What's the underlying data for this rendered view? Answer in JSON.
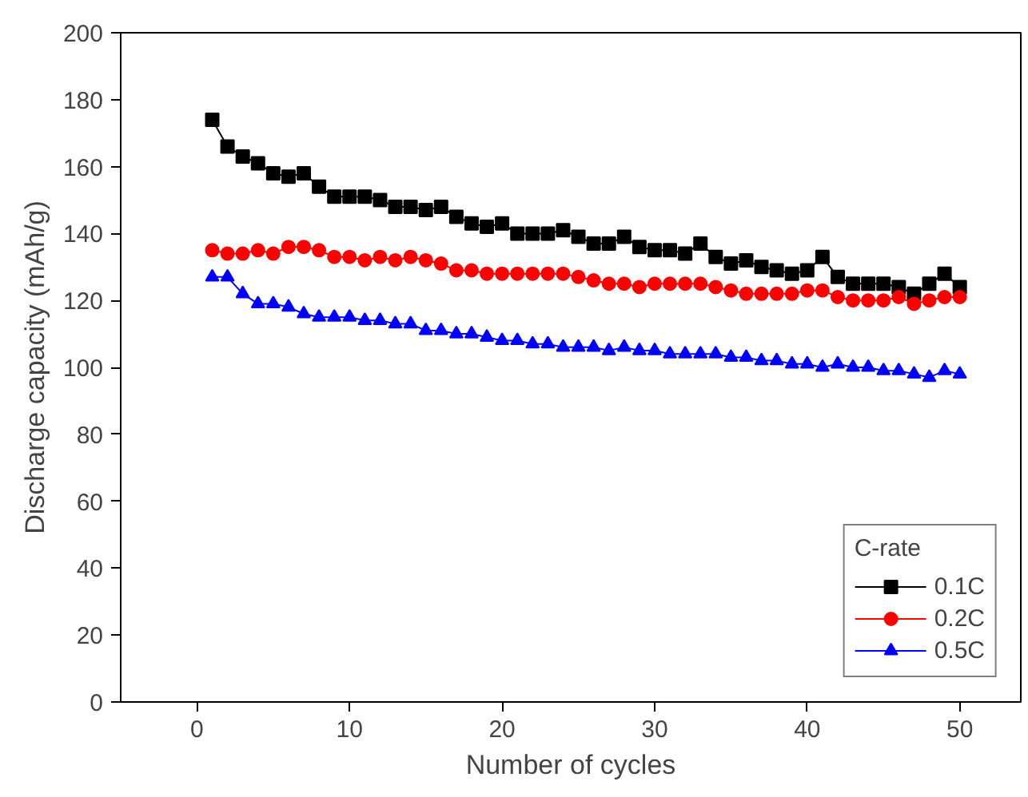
{
  "chart_data": {
    "type": "line",
    "xlabel": "Number of cycles",
    "ylabel": "Discharge capacity (mAh/g)",
    "legend_title": "C-rate",
    "legend": "bottom right",
    "grid": false,
    "x": [
      1,
      2,
      3,
      4,
      5,
      6,
      7,
      8,
      9,
      10,
      11,
      12,
      13,
      14,
      15,
      16,
      17,
      18,
      19,
      20,
      21,
      22,
      23,
      24,
      25,
      26,
      27,
      28,
      29,
      30,
      31,
      32,
      33,
      34,
      35,
      36,
      37,
      38,
      39,
      40,
      41,
      42,
      43,
      44,
      45,
      46,
      47,
      48,
      49,
      50
    ],
    "xlim": [
      -5,
      54
    ],
    "xticks": [
      0,
      10,
      20,
      30,
      40,
      50
    ],
    "ylim": [
      0,
      200
    ],
    "yticks": [
      0,
      20,
      40,
      60,
      80,
      100,
      120,
      140,
      160,
      180,
      200
    ],
    "series": [
      {
        "name": "0.1C",
        "color": "#000000",
        "marker": "square",
        "values": [
          174,
          166,
          163,
          161,
          158,
          157,
          158,
          154,
          151,
          151,
          151,
          150,
          148,
          148,
          147,
          148,
          145,
          143,
          142,
          143,
          140,
          140,
          140,
          141,
          139,
          137,
          137,
          139,
          136,
          135,
          135,
          134,
          137,
          133,
          131,
          132,
          130,
          129,
          128,
          129,
          133,
          127,
          125,
          125,
          125,
          124,
          122,
          125,
          128,
          124
        ]
      },
      {
        "name": "0.2C",
        "color": "#ff0000",
        "marker": "circle",
        "values": [
          135,
          134,
          134,
          135,
          134,
          136,
          136,
          135,
          133,
          133,
          132,
          133,
          132,
          133,
          132,
          131,
          129,
          129,
          128,
          128,
          128,
          128,
          128,
          128,
          127,
          126,
          125,
          125,
          124,
          125,
          125,
          125,
          125,
          124,
          123,
          122,
          122,
          122,
          122,
          123,
          123,
          121,
          120,
          120,
          120,
          121,
          119,
          120,
          121,
          121
        ]
      },
      {
        "name": "0.5C",
        "color": "#0000ff",
        "marker": "triangle",
        "values": [
          127,
          127,
          122,
          119,
          119,
          118,
          116,
          115,
          115,
          115,
          114,
          114,
          113,
          113,
          111,
          111,
          110,
          110,
          109,
          108,
          108,
          107,
          107,
          106,
          106,
          106,
          105,
          106,
          105,
          105,
          104,
          104,
          104,
          104,
          103,
          103,
          102,
          102,
          101,
          101,
          100,
          101,
          100,
          100,
          99,
          99,
          98,
          97,
          99,
          98
        ]
      }
    ]
  }
}
